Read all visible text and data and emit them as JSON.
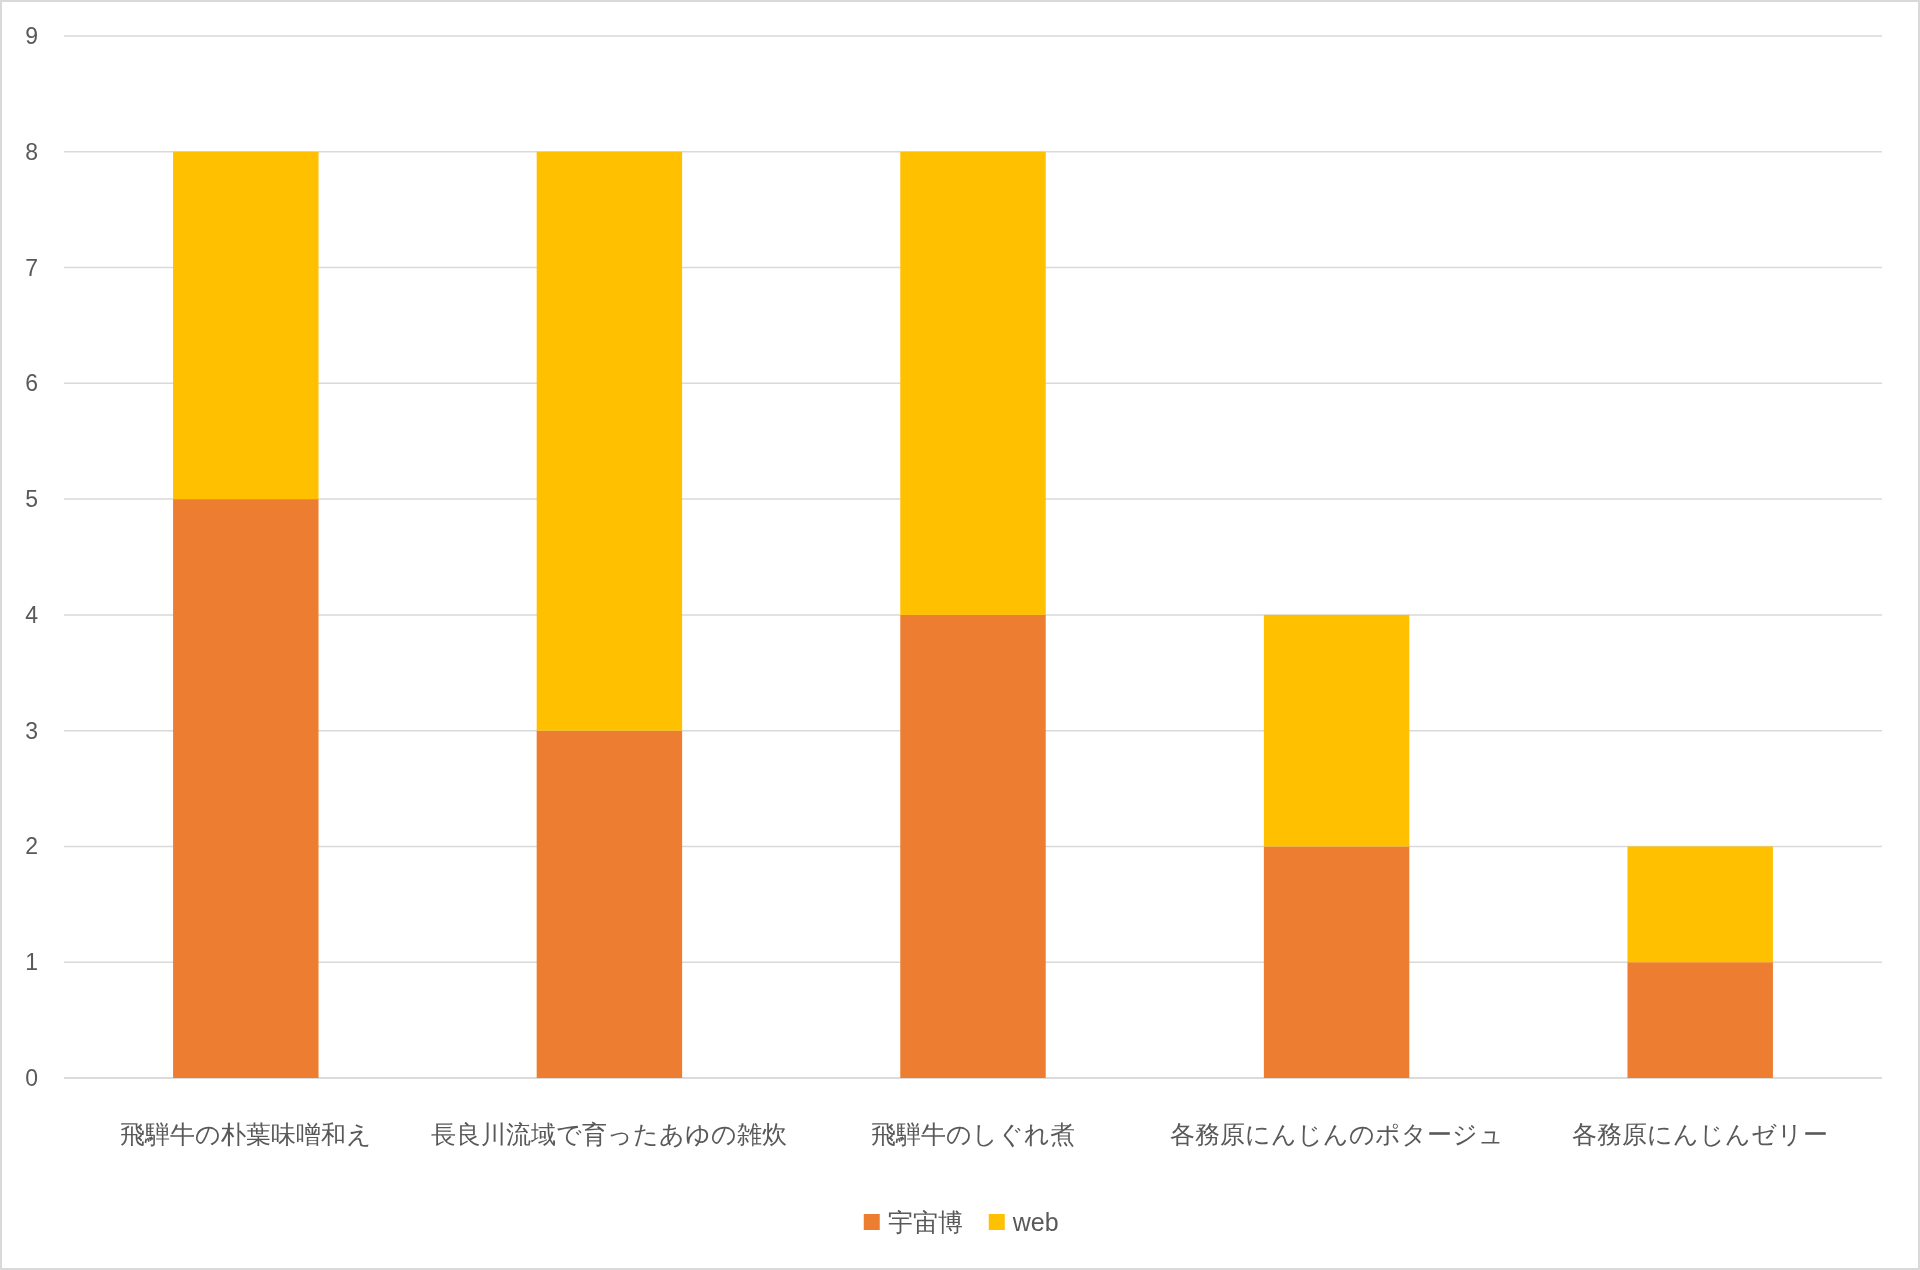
{
  "chart_data": {
    "type": "bar",
    "stacked": true,
    "categories": [
      "飛騨牛の朴葉味噌和え",
      "長良川流域で育ったあゆの雑炊",
      "飛騨牛のしぐれ煮",
      "各務原にんじんのポタージュ",
      "各務原にんじんゼリー"
    ],
    "series": [
      {
        "name": "宇宙博",
        "color": "#ed7d31",
        "values": [
          5,
          3,
          4,
          2,
          1
        ]
      },
      {
        "name": "web",
        "color": "#ffc000",
        "values": [
          3,
          5,
          4,
          2,
          1
        ]
      }
    ],
    "ylim": [
      0,
      9
    ],
    "yticks": [
      0,
      1,
      2,
      3,
      4,
      5,
      6,
      7,
      8,
      9
    ],
    "grid": "y",
    "legend": "bottom"
  }
}
